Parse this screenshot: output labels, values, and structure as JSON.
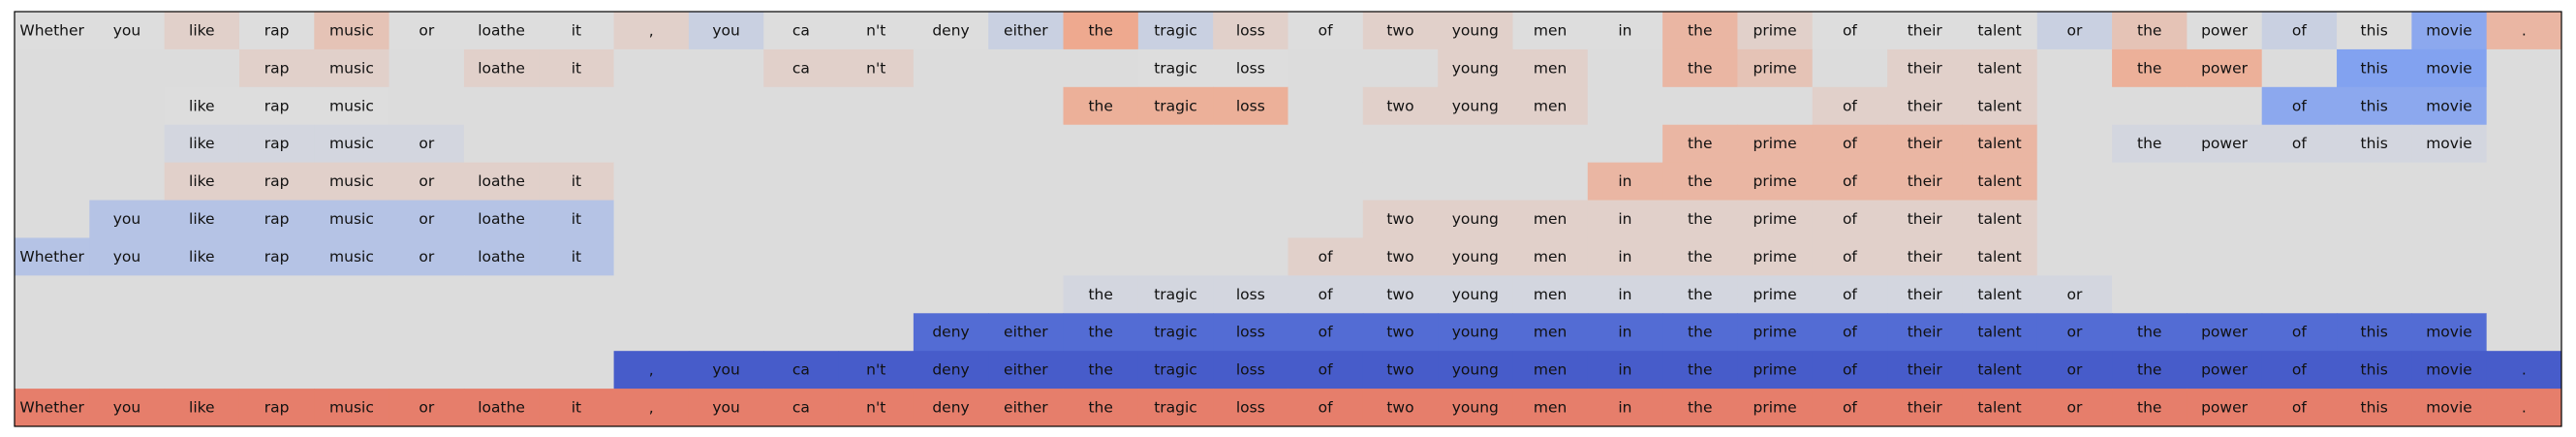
{
  "chart_data": {
    "type": "heatmap",
    "tokens": [
      "Whether",
      "you",
      "like",
      "rap",
      "music",
      "or",
      "loathe",
      "it",
      ",",
      "you",
      "ca",
      "n't",
      "deny",
      "either",
      "the",
      "tragic",
      "loss",
      "of",
      "two",
      "young",
      "men",
      "in",
      "the",
      "prime",
      "of",
      "their",
      "talent",
      "or",
      "the",
      "power",
      "of",
      "this",
      "movie",
      "."
    ],
    "rows": [
      {
        "shown": [
          0,
          1,
          2,
          3,
          4,
          5,
          6,
          7,
          8,
          9,
          10,
          11,
          12,
          13,
          14,
          15,
          16,
          17,
          18,
          19,
          20,
          21,
          22,
          23,
          24,
          25,
          26,
          27,
          28,
          29,
          30,
          31,
          32,
          33
        ],
        "values": [
          0.0,
          0.0,
          0.1,
          0.0,
          0.2,
          0.0,
          0.0,
          0.0,
          0.1,
          -0.1,
          0.0,
          0.0,
          0.0,
          -0.1,
          0.4,
          -0.1,
          0.1,
          0.0,
          0.1,
          0.1,
          0.0,
          0.0,
          0.3,
          0.1,
          0.0,
          0.0,
          0.0,
          -0.1,
          0.2,
          0.0,
          -0.1,
          0.0,
          -0.4,
          0.3
        ]
      },
      {
        "shown": [
          3,
          4,
          6,
          7,
          10,
          11,
          15,
          16,
          19,
          20,
          22,
          23,
          25,
          26,
          28,
          29,
          31,
          32
        ],
        "values": [
          0,
          0,
          0,
          0.1,
          0.1,
          0,
          0.1,
          0.1,
          0,
          0,
          0.1,
          0.1,
          0,
          0,
          0,
          0,
          0,
          0,
          0,
          0.1,
          0.1,
          0,
          0.3,
          0.2,
          0,
          0.1,
          0.1,
          0,
          0.35,
          0.35,
          0,
          -0.45,
          -0.45,
          0
        ]
      },
      {
        "shown": [
          2,
          3,
          4,
          14,
          15,
          16,
          18,
          19,
          20,
          24,
          25,
          26,
          30,
          31,
          32
        ],
        "values": [
          0,
          0,
          0,
          0,
          0,
          0,
          0,
          0,
          0,
          0,
          0,
          0,
          0,
          0,
          0.35,
          0.35,
          0.35,
          0,
          0.1,
          0.1,
          0.1,
          0,
          0,
          0,
          0.1,
          0.1,
          0.1,
          0,
          0,
          0,
          -0.4,
          -0.4,
          -0.4,
          0
        ]
      },
      {
        "shown": [
          2,
          3,
          4,
          5,
          22,
          23,
          24,
          25,
          26,
          28,
          29,
          30,
          31,
          32
        ],
        "values": [
          0,
          -0.05,
          -0.05,
          -0.05,
          -0.05,
          -0.05,
          0,
          0,
          0,
          0,
          0,
          0,
          0,
          0,
          0,
          0,
          0,
          0,
          0,
          0,
          0,
          0,
          0.3,
          0.3,
          0.3,
          0.3,
          0.3,
          0,
          -0.05,
          -0.05,
          -0.05,
          -0.05,
          -0.05,
          0
        ]
      },
      {
        "shown": [
          2,
          3,
          4,
          5,
          6,
          7,
          21,
          22,
          23,
          24,
          25,
          26
        ],
        "values": [
          0,
          0,
          0.1,
          0.1,
          0.1,
          0.1,
          0.1,
          0.1,
          0,
          0,
          0,
          0,
          0,
          0,
          0,
          0,
          0,
          0,
          0,
          0,
          0,
          0.3,
          0.3,
          0.3,
          0.3,
          0.3,
          0.3,
          0,
          0,
          0,
          0,
          0,
          0,
          0
        ]
      },
      {
        "shown": [
          1,
          2,
          3,
          4,
          5,
          6,
          7,
          18,
          19,
          20,
          21,
          22,
          23,
          24,
          25,
          26
        ],
        "values": [
          0,
          -0.2,
          -0.2,
          -0.2,
          -0.2,
          -0.2,
          -0.2,
          -0.2,
          0,
          0,
          0,
          0,
          0,
          0,
          0,
          0,
          0,
          0,
          0.1,
          0.1,
          0.1,
          0.1,
          0.1,
          0.1,
          0.1,
          0.1,
          0.1,
          0,
          0,
          0,
          0,
          0,
          0,
          0
        ]
      },
      {
        "shown": [
          0,
          1,
          2,
          3,
          4,
          5,
          6,
          7,
          17,
          18,
          19,
          20,
          21,
          22,
          23,
          24,
          25,
          26
        ],
        "values": [
          -0.2,
          -0.2,
          -0.2,
          -0.2,
          -0.2,
          -0.2,
          -0.2,
          -0.2,
          0,
          0,
          0,
          0,
          0,
          0,
          0,
          0,
          0,
          0.1,
          0.1,
          0.1,
          0.1,
          0.1,
          0.1,
          0.1,
          0.1,
          0.1,
          0.1,
          0,
          0,
          0,
          0,
          0,
          0,
          0
        ]
      },
      {
        "shown": [
          14,
          15,
          16,
          17,
          18,
          19,
          20,
          21,
          22,
          23,
          24,
          25,
          26,
          27
        ],
        "values": [
          0,
          0,
          0,
          0,
          0,
          0,
          0,
          0,
          0,
          0,
          0,
          0,
          0,
          0,
          -0.05,
          -0.05,
          -0.05,
          -0.05,
          -0.05,
          -0.05,
          -0.05,
          -0.05,
          -0.05,
          -0.05,
          -0.05,
          -0.05,
          -0.05,
          -0.05,
          0,
          0,
          0,
          0,
          0,
          0
        ]
      },
      {
        "shown": [
          12,
          13,
          14,
          15,
          16,
          17,
          18,
          19,
          20,
          21,
          22,
          23,
          24,
          25,
          26,
          27,
          28,
          29,
          30,
          31,
          32
        ],
        "values": [
          0,
          0,
          0,
          0,
          0,
          0,
          0,
          0,
          0,
          0,
          0,
          0,
          -0.8,
          -0.8,
          -0.8,
          -0.8,
          -0.8,
          -0.8,
          -0.8,
          -0.8,
          -0.8,
          -0.8,
          -0.8,
          -0.8,
          -0.8,
          -0.8,
          -0.8,
          -0.8,
          -0.8,
          -0.8,
          -0.8,
          -0.8,
          -0.8,
          0
        ]
      },
      {
        "shown": [
          8,
          9,
          10,
          11,
          12,
          13,
          14,
          15,
          16,
          17,
          18,
          19,
          20,
          21,
          22,
          23,
          24,
          25,
          26,
          27,
          28,
          29,
          30,
          31,
          32,
          33
        ],
        "values": [
          0,
          0,
          0,
          0,
          0,
          0,
          0,
          0,
          -0.9,
          -0.9,
          -0.9,
          -0.9,
          -0.9,
          -0.9,
          -0.9,
          -0.9,
          -0.9,
          -0.9,
          -0.9,
          -0.9,
          -0.9,
          -0.9,
          -0.9,
          -0.9,
          -0.9,
          -0.9,
          -0.9,
          -0.9,
          -0.9,
          -0.9,
          -0.9,
          -0.9,
          -0.9,
          -0.9
        ]
      },
      {
        "shown": [
          0,
          1,
          2,
          3,
          4,
          5,
          6,
          7,
          8,
          9,
          10,
          11,
          12,
          13,
          14,
          15,
          16,
          17,
          18,
          19,
          20,
          21,
          22,
          23,
          24,
          25,
          26,
          27,
          28,
          29,
          30,
          31,
          32,
          33
        ],
        "values": [
          0.6,
          0.6,
          0.6,
          0.6,
          0.6,
          0.6,
          0.6,
          0.6,
          0.6,
          0.6,
          0.6,
          0.6,
          0.6,
          0.6,
          0.6,
          0.6,
          0.6,
          0.6,
          0.6,
          0.6,
          0.6,
          0.6,
          0.6,
          0.6,
          0.6,
          0.6,
          0.6,
          0.6,
          0.6,
          0.6,
          0.6,
          0.6,
          0.6,
          0.6
        ]
      }
    ],
    "colormap": "coolwarm",
    "value_range": [
      -1,
      1
    ],
    "colors": {
      "background": "#dcdcdc",
      "frame": "#000000",
      "text": "#111111"
    }
  }
}
